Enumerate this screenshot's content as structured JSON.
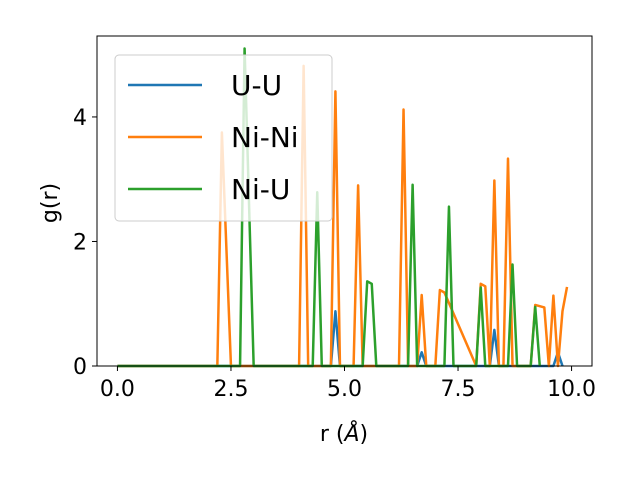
{
  "chart_data": {
    "type": "line",
    "xlabel_main": "r (",
    "xlabel_unit": "Å",
    "xlabel_close": ")",
    "ylabel": "g(r)",
    "xlim": [
      -0.45,
      10.45
    ],
    "ylim": [
      0,
      5.3
    ],
    "grid": false,
    "legend_position": "top-left",
    "x_ticks": [
      0.0,
      2.5,
      5.0,
      7.5,
      10.0
    ],
    "x_tick_labels": [
      "0.0",
      "2.5",
      "5.0",
      "7.5",
      "10.0"
    ],
    "y_ticks": [
      0,
      2,
      4
    ],
    "y_tick_labels": [
      "0",
      "2",
      "4"
    ],
    "series": [
      {
        "name": "U-U",
        "color": "#1f77b4",
        "x": [
          0.0,
          4.7,
          4.8,
          4.9,
          6.6,
          6.7,
          6.8,
          8.2,
          8.3,
          8.4,
          9.6,
          9.7,
          9.8
        ],
        "y": [
          0,
          0,
          0.88,
          0,
          0,
          0.22,
          0,
          0,
          0.58,
          0,
          0,
          0.22,
          0
        ]
      },
      {
        "name": "Ni-Ni",
        "color": "#ff7f0e",
        "x": [
          0.0,
          2.2,
          2.3,
          2.5,
          4.0,
          4.1,
          4.2,
          4.7,
          4.8,
          4.9,
          5.2,
          5.3,
          5.4,
          6.2,
          6.3,
          6.4,
          6.6,
          6.7,
          6.8,
          7.0,
          7.1,
          7.2,
          7.9,
          8.0,
          8.1,
          8.2,
          8.3,
          8.4,
          8.5,
          8.6,
          8.7,
          8.8,
          9.1,
          9.2,
          9.4,
          9.5,
          9.6,
          9.7,
          9.8,
          9.9
        ],
        "y": [
          0,
          0,
          3.75,
          0,
          0,
          4.82,
          0,
          0,
          4.41,
          0,
          0,
          2.9,
          0,
          0,
          4.12,
          0,
          0,
          1.14,
          0,
          0,
          1.22,
          1.18,
          0,
          1.32,
          1.28,
          0,
          2.98,
          0,
          0,
          3.33,
          0,
          0,
          0,
          0.98,
          0.94,
          0,
          1.13,
          0,
          0.88,
          1.27
        ]
      },
      {
        "name": "Ni-U",
        "color": "#2ca02c",
        "x": [
          0.0,
          2.7,
          2.8,
          3.0,
          4.3,
          4.4,
          4.5,
          5.4,
          5.5,
          5.6,
          5.7,
          6.4,
          6.5,
          6.6,
          7.2,
          7.3,
          7.4,
          7.9,
          8.0,
          8.1,
          8.6,
          8.7,
          8.8,
          9.1,
          9.2,
          9.3
        ],
        "y": [
          0,
          0,
          5.1,
          0,
          0,
          2.79,
          0,
          0,
          1.36,
          1.32,
          0,
          0,
          2.91,
          0,
          0,
          2.56,
          0,
          0,
          1.26,
          0,
          0,
          1.63,
          0,
          0,
          0.95,
          0
        ]
      }
    ]
  }
}
